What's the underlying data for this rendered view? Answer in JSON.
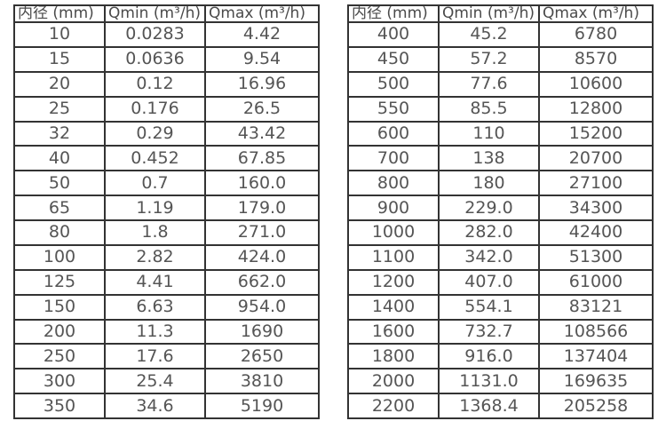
{
  "page": {
    "background": "#ffffff"
  },
  "colors": {
    "border": "#333333",
    "text": "#555555",
    "header_text": "#4a4a4a"
  },
  "tables": [
    {
      "name": "flow-spec-small-diameters",
      "headers": [
        "内径 (mm)",
        "Qmin (m³/h)",
        "Qmax (m³/h)"
      ],
      "rows": [
        [
          "10",
          "0.0283",
          "4.42"
        ],
        [
          "15",
          "0.0636",
          "9.54"
        ],
        [
          "20",
          "0.12",
          "16.96"
        ],
        [
          "25",
          "0.176",
          "26.5"
        ],
        [
          "32",
          "0.29",
          "43.42"
        ],
        [
          "40",
          "0.452",
          "67.85"
        ],
        [
          "50",
          "0.7",
          "160.0"
        ],
        [
          "65",
          "1.19",
          "179.0"
        ],
        [
          "80",
          "1.8",
          "271.0"
        ],
        [
          "100",
          "2.82",
          "424.0"
        ],
        [
          "125",
          "4.41",
          "662.0"
        ],
        [
          "150",
          "6.63",
          "954.0"
        ],
        [
          "200",
          "11.3",
          "1690"
        ],
        [
          "250",
          "17.6",
          "2650"
        ],
        [
          "300",
          "25.4",
          "3810"
        ],
        [
          "350",
          "34.6",
          "5190"
        ]
      ]
    },
    {
      "name": "flow-spec-large-diameters",
      "headers": [
        "内径 (mm)",
        "Qmin (m³/h)",
        "Qmax (m³/h)"
      ],
      "rows": [
        [
          "400",
          "45.2",
          "6780"
        ],
        [
          "450",
          "57.2",
          "8570"
        ],
        [
          "500",
          "77.6",
          "10600"
        ],
        [
          "550",
          "85.5",
          "12800"
        ],
        [
          "600",
          "110",
          "15200"
        ],
        [
          "700",
          "138",
          "20700"
        ],
        [
          "800",
          "180",
          "27100"
        ],
        [
          "900",
          "229.0",
          "34300"
        ],
        [
          "1000",
          "282.0",
          "42400"
        ],
        [
          "1100",
          "342.0",
          "51300"
        ],
        [
          "1200",
          "407.0",
          "61000"
        ],
        [
          "1400",
          "554.1",
          "83121"
        ],
        [
          "1600",
          "732.7",
          "108566"
        ],
        [
          "1800",
          "916.0",
          "137404"
        ],
        [
          "2000",
          "1131.0",
          "169635"
        ],
        [
          "2200",
          "1368.4",
          "205258"
        ]
      ]
    }
  ]
}
